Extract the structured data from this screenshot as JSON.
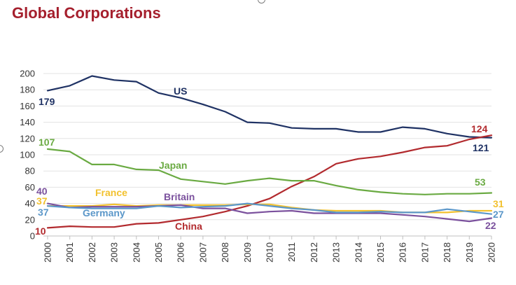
{
  "chart_data": {
    "type": "line",
    "title": "Global Corporations",
    "xlabel": "",
    "ylabel": "",
    "ylim": [
      0,
      200
    ],
    "y_ticks": [
      0,
      20,
      40,
      60,
      80,
      100,
      120,
      140,
      160,
      180,
      200
    ],
    "x": [
      2000,
      2001,
      2002,
      2003,
      2004,
      2005,
      2006,
      2007,
      2008,
      2009,
      2010,
      2011,
      2012,
      2013,
      2014,
      2015,
      2016,
      2017,
      2018,
      2019,
      2020
    ],
    "grid": "horizontal",
    "legend": "inline labels",
    "series": [
      {
        "name": "US",
        "color": "#1f3264",
        "values": [
          179,
          185,
          197,
          192,
          190,
          176,
          170,
          162,
          153,
          140,
          139,
          133,
          132,
          132,
          128,
          128,
          134,
          132,
          126,
          122,
          121
        ],
        "start_label": "179",
        "end_label": "121"
      },
      {
        "name": "China",
        "color": "#b22a2e",
        "values": [
          10,
          12,
          11,
          11,
          15,
          16,
          20,
          24,
          30,
          37,
          46,
          61,
          73,
          89,
          95,
          98,
          103,
          109,
          111,
          119,
          124
        ],
        "start_label": "10",
        "end_label": "124"
      },
      {
        "name": "Japan",
        "color": "#6aaa42",
        "values": [
          107,
          104,
          88,
          88,
          82,
          81,
          70,
          67,
          64,
          68,
          71,
          68,
          68,
          62,
          57,
          54,
          52,
          51,
          52,
          52,
          53
        ],
        "start_label": "107",
        "end_label": "53"
      },
      {
        "name": "France",
        "color": "#f2c12e",
        "values": [
          37,
          37,
          37,
          39,
          37,
          38,
          38,
          38,
          38,
          39,
          39,
          35,
          32,
          31,
          31,
          31,
          29,
          29,
          29,
          31,
          31
        ],
        "start_label": "37",
        "end_label": "31"
      },
      {
        "name": "Britain",
        "color": "#7b519d",
        "values": [
          40,
          35,
          36,
          36,
          36,
          37,
          38,
          34,
          34,
          28,
          30,
          31,
          28,
          28,
          28,
          28,
          26,
          24,
          21,
          18,
          22
        ],
        "start_label": "40",
        "end_label": "22"
      },
      {
        "name": "Germany",
        "color": "#5b97c9",
        "values": [
          37,
          35,
          34,
          34,
          34,
          37,
          35,
          36,
          37,
          40,
          37,
          34,
          32,
          29,
          29,
          30,
          29,
          29,
          33,
          30,
          27
        ],
        "start_label": "37",
        "end_label": "27"
      }
    ]
  }
}
